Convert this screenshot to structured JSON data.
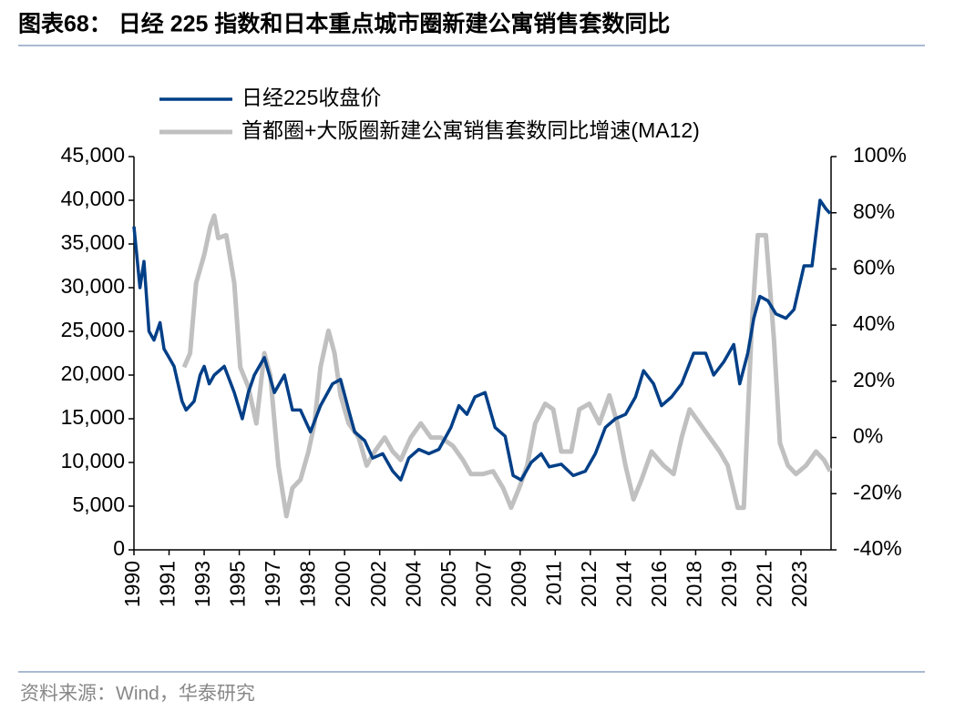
{
  "title": "图表68：  日经 225 指数和日本重点城市圈新建公寓销售套数同比",
  "source": "资料来源：Wind，华泰研究",
  "chart_data": {
    "type": "line",
    "xlim": [
      1990,
      2024.75
    ],
    "xticks": [
      {
        "value": 1990,
        "label": "1990"
      },
      {
        "value": 1991.75,
        "label": "1991"
      },
      {
        "value": 1993.5,
        "label": "1993"
      },
      {
        "value": 1995.25,
        "label": "1995"
      },
      {
        "value": 1997,
        "label": "1997"
      },
      {
        "value": 1998.75,
        "label": "1998"
      },
      {
        "value": 2000.5,
        "label": "2000"
      },
      {
        "value": 2002.25,
        "label": "2002"
      },
      {
        "value": 2004,
        "label": "2004"
      },
      {
        "value": 2005.75,
        "label": "2005"
      },
      {
        "value": 2007.5,
        "label": "2007"
      },
      {
        "value": 2009.25,
        "label": "2009"
      },
      {
        "value": 2011,
        "label": "2011"
      },
      {
        "value": 2012.75,
        "label": "2012"
      },
      {
        "value": 2014.5,
        "label": "2014"
      },
      {
        "value": 2016.25,
        "label": "2016"
      },
      {
        "value": 2018,
        "label": "2018"
      },
      {
        "value": 2019.75,
        "label": "2019"
      },
      {
        "value": 2021.5,
        "label": "2021"
      },
      {
        "value": 2023.25,
        "label": "2023"
      }
    ],
    "ylim": [
      0,
      45000
    ],
    "yticks": [
      0,
      {
        "value": 5000,
        "label": "5,000"
      },
      {
        "value": 10000,
        "label": "10,000"
      },
      {
        "value": 15000,
        "label": "15,000"
      },
      {
        "value": 20000,
        "label": "20,000"
      },
      {
        "value": 25000,
        "label": "25,000"
      },
      {
        "value": 30000,
        "label": "30,000"
      },
      {
        "value": 35000,
        "label": "35,000"
      },
      {
        "value": 40000,
        "label": "40,000"
      },
      {
        "value": 45000,
        "label": "45,000"
      }
    ],
    "y2lim": [
      -40,
      100
    ],
    "y2ticks": [
      {
        "value": -40,
        "label": "-40%"
      },
      {
        "value": -20,
        "label": "-20%"
      },
      {
        "value": 0,
        "label": "0%"
      },
      {
        "value": 20,
        "label": "20%"
      },
      {
        "value": 40,
        "label": "40%"
      },
      {
        "value": 60,
        "label": "60%"
      },
      {
        "value": 80,
        "label": "80%"
      },
      {
        "value": 100,
        "label": "100%"
      }
    ],
    "series": [
      {
        "name": "日经225收盘价",
        "color": "#003f87",
        "x": [
          1990.0,
          1990.3,
          1990.5,
          1990.75,
          1991.0,
          1991.3,
          1991.5,
          1991.75,
          1992.0,
          1992.4,
          1992.6,
          1993.0,
          1993.3,
          1993.5,
          1993.75,
          1994.0,
          1994.5,
          1995.0,
          1995.4,
          1995.7,
          1996.0,
          1996.5,
          1997.0,
          1997.5,
          1997.9,
          1998.3,
          1998.8,
          1999.3,
          1999.9,
          2000.3,
          2000.7,
          2001.0,
          2001.5,
          2001.9,
          2002.4,
          2002.9,
          2003.3,
          2003.7,
          2004.2,
          2004.7,
          2005.2,
          2005.8,
          2006.2,
          2006.6,
          2007.0,
          2007.5,
          2008.0,
          2008.5,
          2008.9,
          2009.3,
          2009.8,
          2010.3,
          2010.7,
          2011.3,
          2011.9,
          2012.5,
          2013.0,
          2013.5,
          2014.0,
          2014.5,
          2015.0,
          2015.4,
          2015.9,
          2016.3,
          2016.8,
          2017.3,
          2017.9,
          2018.5,
          2018.9,
          2019.4,
          2019.9,
          2020.2,
          2020.6,
          2020.9,
          2021.2,
          2021.6,
          2022.0,
          2022.5,
          2022.9,
          2023.4,
          2023.8,
          2024.2,
          2024.5,
          2024.7
        ],
        "values": [
          37000,
          30000,
          33000,
          25000,
          24000,
          26000,
          23000,
          22000,
          21000,
          17000,
          16000,
          17000,
          20000,
          21000,
          19000,
          20000,
          21000,
          18000,
          15000,
          18000,
          20000,
          22000,
          18000,
          20000,
          16000,
          16000,
          13500,
          16500,
          19000,
          19500,
          16000,
          13500,
          12500,
          10500,
          11000,
          9000,
          8000,
          10500,
          11500,
          11000,
          11500,
          14000,
          16500,
          15500,
          17500,
          18000,
          14000,
          13000,
          8500,
          8000,
          10000,
          11000,
          9500,
          9800,
          8500,
          9000,
          11000,
          14000,
          15000,
          15500,
          17500,
          20500,
          19000,
          16500,
          17500,
          19000,
          22500,
          22500,
          20000,
          21500,
          23500,
          19000,
          22500,
          26500,
          29000,
          28500,
          27000,
          26500,
          27500,
          32500,
          32500,
          40000,
          39000,
          38500
        ]
      },
      {
        "name": "首都圈+大阪圈新建公寓销售套数同比增速(MA12)",
        "color": "#c0c0c0",
        "axis": "y2",
        "x": [
          1992.5,
          1992.8,
          1993.1,
          1993.5,
          1993.8,
          1994.0,
          1994.2,
          1994.6,
          1995.0,
          1995.3,
          1995.7,
          1996.1,
          1996.5,
          1996.8,
          1997.2,
          1997.6,
          1997.9,
          1998.3,
          1998.7,
          1999.0,
          1999.3,
          1999.7,
          2000.0,
          2000.3,
          2000.7,
          2001.2,
          2001.6,
          2002.0,
          2002.5,
          2002.9,
          2003.3,
          2003.8,
          2004.3,
          2004.8,
          2005.3,
          2005.9,
          2006.4,
          2006.8,
          2007.4,
          2007.9,
          2008.4,
          2008.8,
          2009.2,
          2009.6,
          2010.0,
          2010.5,
          2010.9,
          2011.3,
          2011.8,
          2012.2,
          2012.7,
          2013.2,
          2013.7,
          2014.1,
          2014.5,
          2014.9,
          2015.3,
          2015.8,
          2016.4,
          2016.9,
          2017.3,
          2017.7,
          2018.2,
          2018.7,
          2019.2,
          2019.6,
          2020.1,
          2020.4,
          2020.8,
          2021.1,
          2021.5,
          2021.9,
          2022.2,
          2022.6,
          2023.0,
          2023.5,
          2024.0,
          2024.4,
          2024.7
        ],
        "values": [
          25,
          30,
          55,
          65,
          75,
          79,
          71,
          72,
          55,
          25,
          18,
          5,
          30,
          22,
          -10,
          -28,
          -18,
          -15,
          -5,
          5,
          25,
          38,
          30,
          15,
          5,
          0,
          -10,
          -5,
          0,
          -5,
          -8,
          0,
          5,
          0,
          0,
          -3,
          -8,
          -13,
          -13,
          -12,
          -18,
          -25,
          -18,
          -10,
          5,
          12,
          10,
          -5,
          -5,
          10,
          12,
          5,
          15,
          5,
          -10,
          -22,
          -15,
          -5,
          -10,
          -13,
          0,
          10,
          5,
          0,
          -5,
          -10,
          -25,
          -25,
          40,
          72,
          72,
          35,
          -2,
          -10,
          -13,
          -10,
          -5,
          -8,
          -12
        ]
      }
    ]
  }
}
